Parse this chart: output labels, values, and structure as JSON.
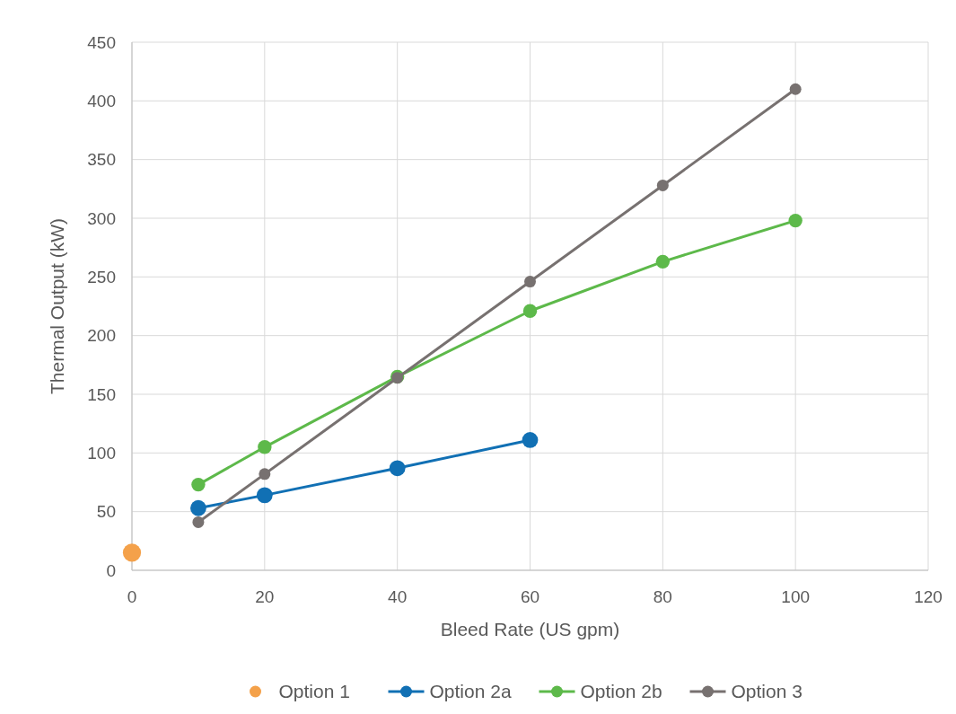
{
  "chart_data": {
    "type": "line",
    "xlabel": "Bleed Rate (US gpm)",
    "ylabel": "Thermal Output (kW)",
    "xlim": [
      0,
      120
    ],
    "xticks": [
      0,
      20,
      40,
      60,
      80,
      100,
      120
    ],
    "ylim": [
      0,
      450
    ],
    "yticks": [
      0,
      50,
      100,
      150,
      200,
      250,
      300,
      350,
      400,
      450
    ],
    "grid": true,
    "legend": "bottom",
    "marker": "circle",
    "line_style": "solid",
    "series": [
      {
        "name": "Option 1",
        "type": "scatter",
        "color": "#f4a14a",
        "x": [
          0
        ],
        "values": [
          15
        ]
      },
      {
        "name": "Option 2a",
        "color": "#1170b4",
        "x": [
          10,
          20,
          40,
          60
        ],
        "values": [
          53,
          64,
          87,
          111
        ]
      },
      {
        "name": "Option 2b",
        "color": "#5db94a",
        "x": [
          10,
          20,
          40,
          60,
          80,
          100
        ],
        "values": [
          73,
          105,
          165,
          221,
          263,
          298
        ]
      },
      {
        "name": "Option 3",
        "color": "#777170",
        "x": [
          10,
          20,
          40,
          60,
          80,
          100
        ],
        "values": [
          41,
          82,
          164,
          246,
          328,
          410
        ]
      }
    ]
  }
}
